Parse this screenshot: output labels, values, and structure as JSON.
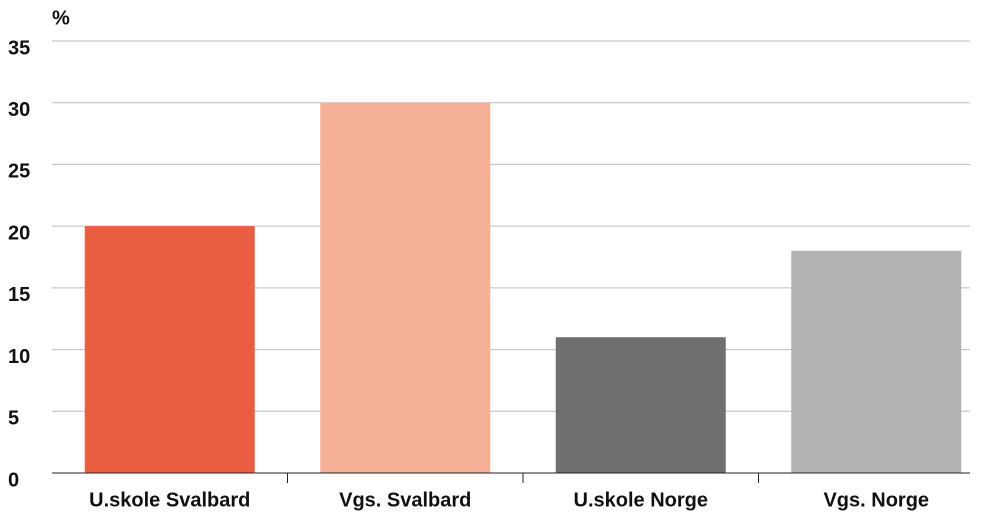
{
  "chart_data": {
    "type": "bar",
    "y_label": "%",
    "categories": [
      "U.skole Svalbard",
      "Vgs. Svalbard",
      "U.skole Norge",
      "Vgs. Norge"
    ],
    "values": [
      20,
      30,
      11,
      18
    ],
    "colors": [
      "#e95e41",
      "#f5b097",
      "#6f6f6f",
      "#b2b2b2"
    ],
    "ylim": [
      0,
      35
    ],
    "yticks": [
      0,
      5,
      10,
      15,
      20,
      25,
      30,
      35
    ],
    "grid": true
  }
}
